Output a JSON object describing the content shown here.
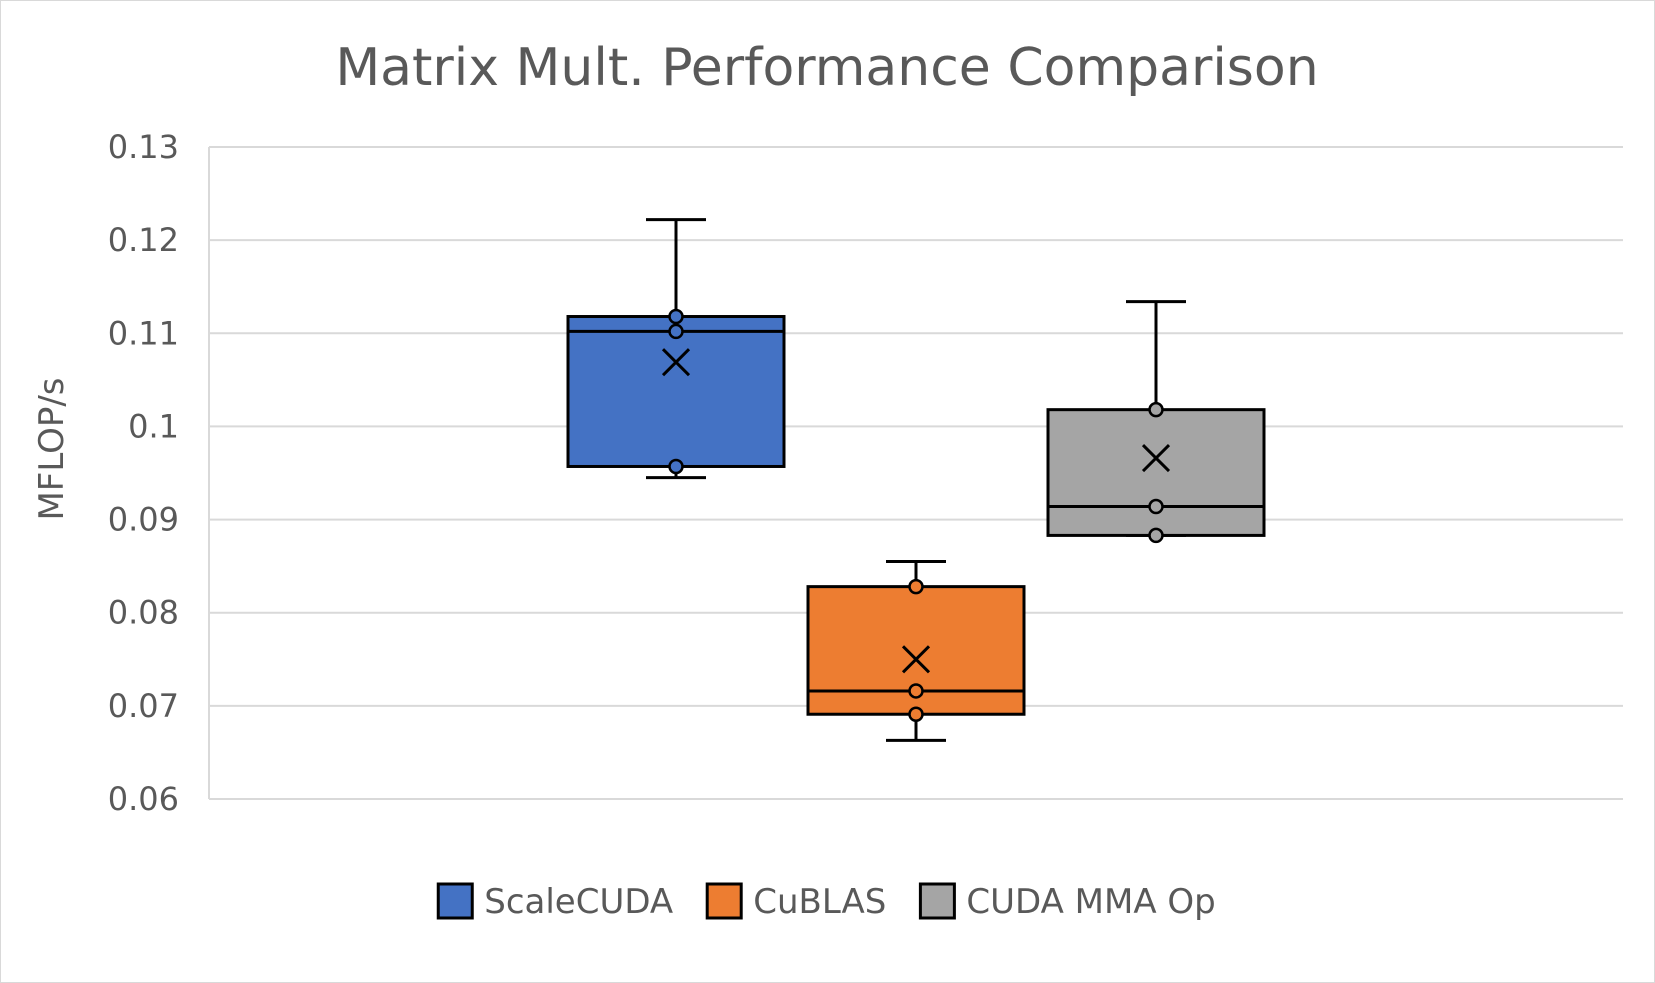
{
  "chart_data": {
    "type": "box",
    "title": "Matrix Mult. Performance Comparison",
    "xlabel": "",
    "ylabel": "MFLOP/s",
    "ylim": [
      0.06,
      0.13
    ],
    "yticks": [
      "0.06",
      "0.07",
      "0.08",
      "0.09",
      "0.1",
      "0.11",
      "0.12",
      "0.13"
    ],
    "grid": true,
    "legend_position": "bottom",
    "series": [
      {
        "name": "ScaleCUDA",
        "color": "#4472c4",
        "whisker_low": 0.0945,
        "q1": 0.0957,
        "median": 0.1102,
        "q3": 0.1118,
        "whisker_high": 0.1222,
        "mean": 0.1069,
        "points": [
          0.1118,
          0.1102,
          0.0957
        ]
      },
      {
        "name": "CuBLAS",
        "color": "#ed7d31",
        "whisker_low": 0.0663,
        "q1": 0.0691,
        "median": 0.0716,
        "q3": 0.0828,
        "whisker_high": 0.0855,
        "mean": 0.075,
        "points": [
          0.0828,
          0.0716,
          0.0691
        ]
      },
      {
        "name": "CUDA MMA Op",
        "color": "#a5a5a5",
        "whisker_low": 0.0883,
        "q1": 0.0883,
        "median": 0.0914,
        "q3": 0.1018,
        "whisker_high": 0.1134,
        "mean": 0.0966,
        "points": [
          0.1018,
          0.0914,
          0.0883
        ]
      }
    ]
  }
}
